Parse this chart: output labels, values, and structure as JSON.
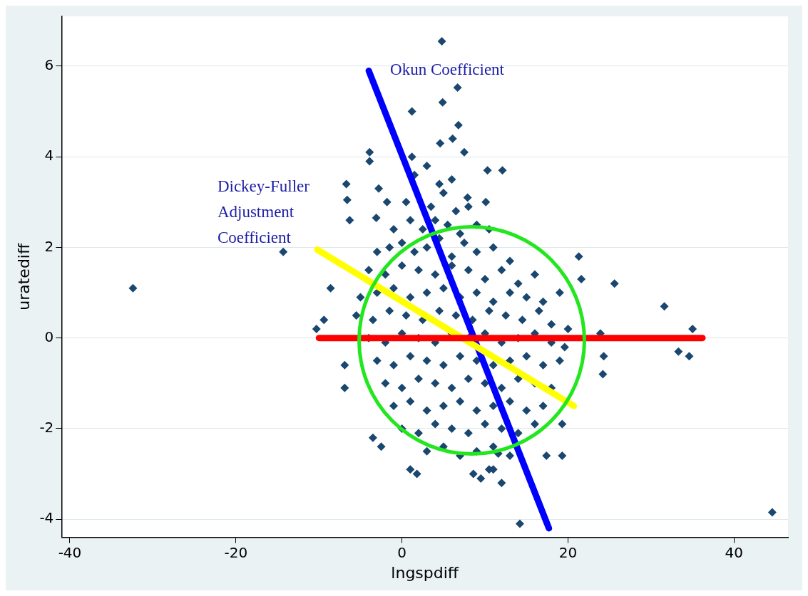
{
  "chart_data": {
    "type": "scatter",
    "xlabel": "lngspdiff",
    "ylabel": "uratediff",
    "xlim": [
      -41,
      46.5
    ],
    "ylim": [
      -4.4,
      7.1
    ],
    "xticks": [
      -40,
      -20,
      0,
      20,
      40
    ],
    "yticks": [
      -4,
      -2,
      0,
      2,
      4,
      6
    ],
    "grid": "y",
    "legend": false,
    "annotations": [
      {
        "text": "Okun Coefficient",
        "x": -4,
        "y": 5.9
      },
      {
        "text": "Dickey-Fuller Adjustment Coefficient",
        "x": -10.2,
        "y": 1.95
      }
    ],
    "series": [
      {
        "color": "#1a476f",
        "marker": "diamond",
        "x": [
          -32.4,
          -14.3,
          -10.3,
          -9.4,
          -8.6,
          -6.6,
          -6.3,
          -6.9,
          -6.9,
          -3.5,
          -2.5,
          4.8,
          6.7,
          4.9,
          1.2,
          6.8,
          6.1,
          4.6,
          1.2,
          -3.9,
          -3.9,
          7.5,
          12.1,
          -6.7,
          -2.8,
          10.3,
          10.1,
          7.9,
          -3.1,
          -1.8,
          21.3,
          21.6,
          25.6,
          31.6,
          35,
          33.3,
          34.6,
          23.9,
          24.3,
          24.2,
          44.6,
          19.6,
          19.3,
          19.3,
          17.4,
          14.2,
          1,
          1.8,
          8.6,
          10.5,
          11.6,
          1.5,
          3,
          4.5,
          6,
          0.5,
          2,
          3.5,
          5,
          6.5,
          8,
          -1,
          1,
          2.5,
          4,
          5.5,
          7,
          9,
          10.5,
          -3,
          -1.5,
          0,
          1.5,
          3,
          4.5,
          6,
          7.5,
          9,
          11,
          13,
          -4,
          -2,
          0,
          2,
          4,
          6,
          8,
          10,
          12,
          14,
          16,
          -5,
          -3,
          -1,
          1,
          3,
          5,
          7,
          9,
          11,
          13,
          15,
          17,
          19,
          -5.5,
          -3.5,
          -1.5,
          0.5,
          2.5,
          4.5,
          6.5,
          8.5,
          10.5,
          12.5,
          14.5,
          16.5,
          18,
          -4,
          -2,
          0,
          2,
          4,
          6,
          8,
          10,
          12,
          14,
          16,
          18,
          20,
          -3,
          -1,
          1,
          3,
          5,
          7,
          9,
          11,
          13,
          15,
          17,
          19,
          -2,
          0,
          2,
          4,
          6,
          8,
          10,
          12,
          14,
          16,
          18,
          -1,
          1,
          3,
          5,
          7,
          9,
          11,
          13,
          15,
          17,
          0,
          2,
          4,
          6,
          8,
          10,
          12,
          14,
          16,
          3,
          5,
          7,
          9,
          11,
          13,
          9.5,
          11,
          12
        ],
        "values": [
          1.1,
          1.9,
          0.2,
          0.4,
          1.1,
          3.05,
          2.6,
          -1.1,
          -0.6,
          -2.2,
          -2.4,
          6.55,
          5.53,
          5.2,
          5,
          4.7,
          4.4,
          4.3,
          4,
          4.1,
          3.9,
          4.1,
          3.7,
          3.4,
          3.3,
          3.7,
          3,
          3.1,
          2.65,
          3,
          1.8,
          1.3,
          1.2,
          0.7,
          0.2,
          -0.3,
          -0.4,
          0.1,
          -0.4,
          -0.8,
          -3.85,
          -0.2,
          -1.9,
          -2.6,
          -2.6,
          -4.1,
          -2.9,
          -3,
          -3,
          -2.9,
          -2.55,
          3.6,
          3.8,
          3.4,
          3.5,
          3,
          null,
          2.9,
          3.2,
          2.8,
          2.9,
          2.4,
          2.6,
          2.4,
          2.6,
          2.5,
          2.3,
          2.5,
          2.4,
          1.9,
          2,
          2.1,
          1.9,
          2,
          2.2,
          1.8,
          2.1,
          1.9,
          2,
          1.7,
          1.5,
          1.4,
          1.6,
          1.5,
          1.4,
          1.6,
          1.5,
          1.3,
          1.5,
          1.2,
          1.4,
          0.9,
          1,
          1.1,
          0.9,
          1,
          1.1,
          0.9,
          1,
          0.8,
          1,
          0.9,
          0.8,
          1,
          0.5,
          0.4,
          0.6,
          0.5,
          0.4,
          0.6,
          0.5,
          0.4,
          0.6,
          0.5,
          0.4,
          0.6,
          0.3,
          0,
          -0.1,
          0.1,
          0,
          -0.1,
          0.1,
          0,
          0.1,
          -0.1,
          0,
          0.1,
          -0.1,
          0.2,
          -0.5,
          -0.6,
          -0.4,
          -0.5,
          -0.6,
          -0.4,
          -0.5,
          -0.6,
          -0.5,
          -0.4,
          -0.6,
          -0.5,
          -1,
          -1.1,
          -0.9,
          -1,
          -1.1,
          -0.9,
          -1,
          -1.1,
          -0.9,
          -1,
          -1.1,
          -1.5,
          -1.4,
          -1.6,
          -1.5,
          -1.4,
          -1.6,
          -1.5,
          -1.4,
          -1.6,
          -1.5,
          -2,
          -2.1,
          -1.9,
          -2,
          -2.1,
          -1.9,
          -2,
          -2.1,
          -1.9,
          -2.5,
          -2.4,
          -2.6,
          -2.5,
          -2.4,
          -2.6,
          -3.1,
          -2.9,
          -3.2
        ]
      },
      {
        "type": "line",
        "color": "#0000ff",
        "x": [
          -4,
          17.7
        ],
        "values": [
          5.9,
          -4.2
        ]
      },
      {
        "type": "line",
        "color": "#ffff00",
        "x": [
          -10.2,
          20.7
        ],
        "values": [
          1.95,
          -1.5
        ]
      },
      {
        "type": "line",
        "color": "#ff0000",
        "x": [
          -10,
          36.2
        ],
        "values": [
          0,
          0
        ]
      }
    ]
  }
}
